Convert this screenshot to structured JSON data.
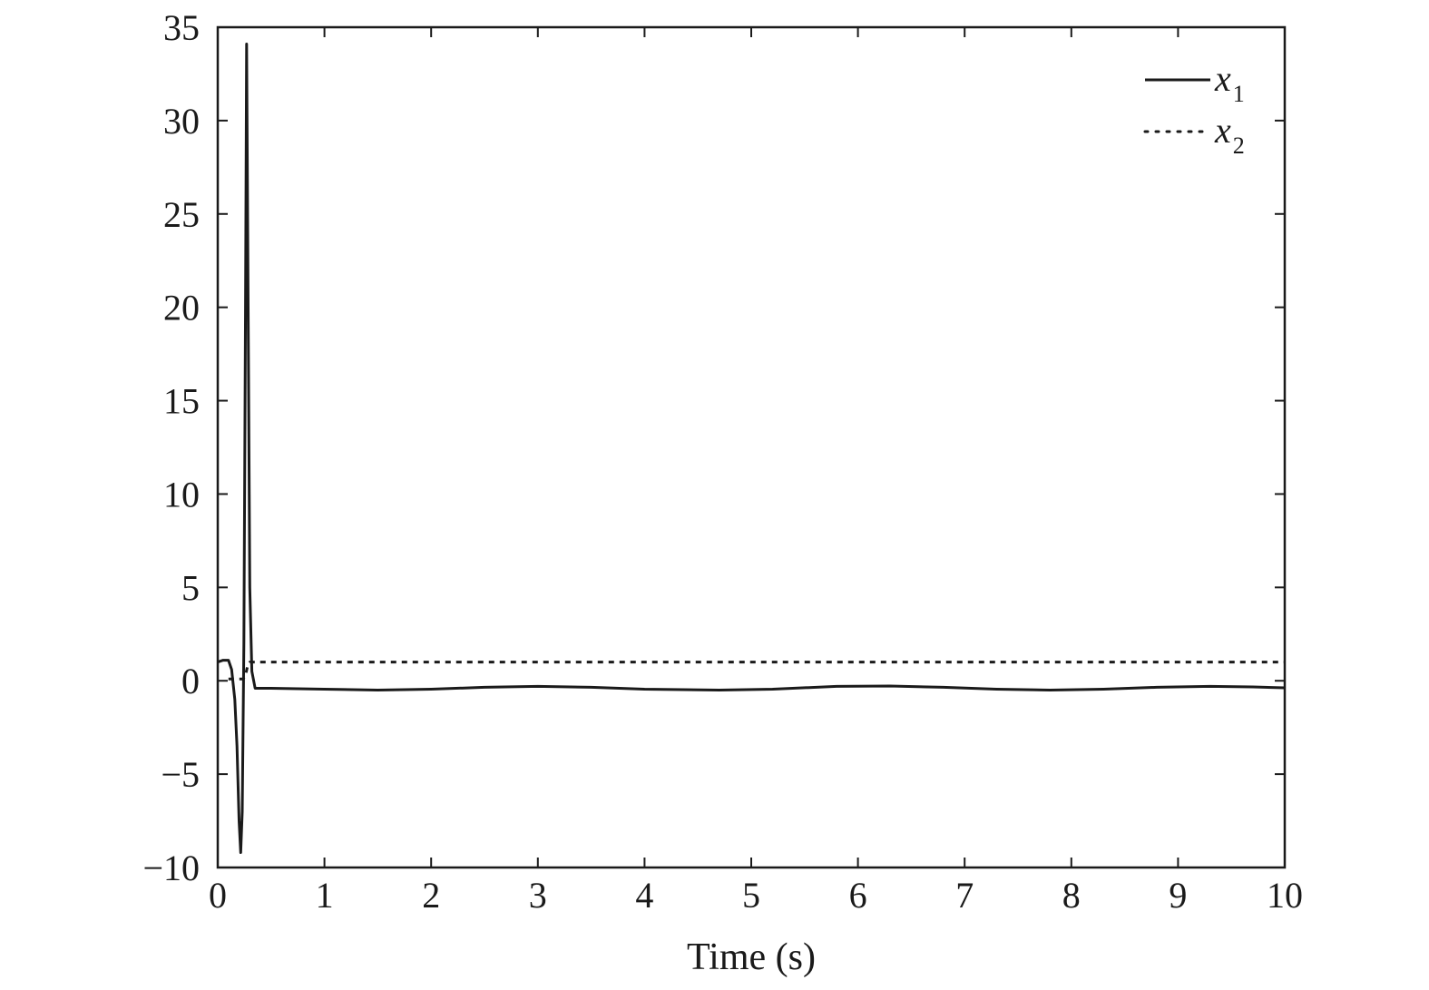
{
  "chart_data": {
    "type": "line",
    "title": "",
    "xlabel": "Time (s)",
    "ylabel": "",
    "xlim": [
      0,
      10
    ],
    "ylim": [
      -10,
      35
    ],
    "x_ticks": [
      0,
      1,
      2,
      3,
      4,
      5,
      6,
      7,
      8,
      9,
      10
    ],
    "y_ticks": [
      -10,
      -5,
      0,
      5,
      10,
      15,
      20,
      25,
      30,
      35
    ],
    "x_tick_labels": [
      "0",
      "1",
      "2",
      "3",
      "4",
      "5",
      "6",
      "7",
      "8",
      "9",
      "10"
    ],
    "y_tick_labels": [
      "−10",
      "−5",
      "0",
      "5",
      "10",
      "15",
      "20",
      "25",
      "30",
      "35"
    ],
    "grid": false,
    "legend_position": "top-right",
    "series": [
      {
        "name": "x1",
        "name_base": "x",
        "name_sub": "1",
        "style": "solid",
        "color": "#1a1a1a",
        "points": [
          [
            0,
            1.0
          ],
          [
            0.05,
            1.1
          ],
          [
            0.1,
            1.1
          ],
          [
            0.13,
            0.6
          ],
          [
            0.16,
            -1.0
          ],
          [
            0.18,
            -3.5
          ],
          [
            0.2,
            -7.5
          ],
          [
            0.215,
            -9.2
          ],
          [
            0.23,
            -7.0
          ],
          [
            0.245,
            2.0
          ],
          [
            0.26,
            20.0
          ],
          [
            0.27,
            34.1
          ],
          [
            0.285,
            20.0
          ],
          [
            0.3,
            5.0
          ],
          [
            0.32,
            0.5
          ],
          [
            0.35,
            -0.4
          ],
          [
            0.5,
            -0.4
          ],
          [
            1.0,
            -0.45
          ],
          [
            1.5,
            -0.5
          ],
          [
            2.0,
            -0.45
          ],
          [
            2.5,
            -0.35
          ],
          [
            3.0,
            -0.3
          ],
          [
            3.5,
            -0.35
          ],
          [
            4.0,
            -0.45
          ],
          [
            4.7,
            -0.5
          ],
          [
            5.2,
            -0.45
          ],
          [
            5.8,
            -0.3
          ],
          [
            6.3,
            -0.28
          ],
          [
            6.8,
            -0.35
          ],
          [
            7.3,
            -0.45
          ],
          [
            7.8,
            -0.5
          ],
          [
            8.3,
            -0.45
          ],
          [
            8.8,
            -0.35
          ],
          [
            9.3,
            -0.3
          ],
          [
            9.7,
            -0.33
          ],
          [
            10.0,
            -0.38
          ]
        ]
      },
      {
        "name": "x2",
        "name_base": "x",
        "name_sub": "2",
        "style": "dotted",
        "color": "#1a1a1a",
        "points": [
          [
            0.1,
            0.1
          ],
          [
            0.2,
            0.1
          ],
          [
            0.24,
            0.1
          ],
          [
            0.26,
            0.3
          ],
          [
            0.28,
            0.8
          ],
          [
            0.3,
            1.0
          ],
          [
            1,
            1.0
          ],
          [
            2,
            1.0
          ],
          [
            3,
            1.0
          ],
          [
            4,
            1.0
          ],
          [
            5,
            1.0
          ],
          [
            6,
            1.0
          ],
          [
            7,
            1.0
          ],
          [
            8,
            1.0
          ],
          [
            9,
            1.0
          ],
          [
            10,
            1.0
          ]
        ]
      }
    ]
  }
}
